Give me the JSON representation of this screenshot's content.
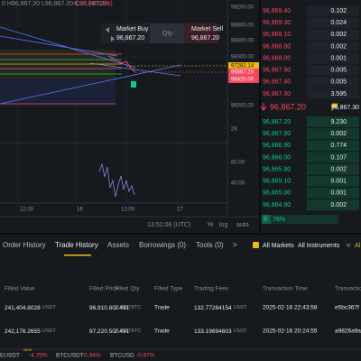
{
  "header": {
    "ohlc": "0  H96,867.20  L96,867.20  C96,867.20",
    "change": "-6.90 (-0.01%)"
  },
  "quick_trade": {
    "buy_label": "Market Buy",
    "buy_price": "96,867.20",
    "qty_label": "Qty",
    "sell_label": "Market Sell",
    "sell_price": "96,867.20"
  },
  "price_axis": [
    "99200.00",
    "98800.00",
    "98400.00",
    "98000.00",
    "96000.00"
  ],
  "price_badges": [
    {
      "label": "97282.14",
      "color": "#f0b90b"
    },
    {
      "label": "96867.20",
      "color": "#f6465d"
    },
    {
      "label": "96420.00",
      "color": "#f6465d"
    }
  ],
  "indicator_axis": [
    "2K",
    "80.00",
    "40.00"
  ],
  "time_axis": [
    "12:00",
    "16",
    "12:00",
    "17"
  ],
  "toolbar": {
    "clock": "13:52:08 (UTC)",
    "percent": "%",
    "log": "log",
    "auto": "auto"
  },
  "order_book": {
    "asks": [
      {
        "price": "96,869.40",
        "qty": "0.102"
      },
      {
        "price": "96,869.30",
        "qty": "0.024"
      },
      {
        "price": "96,869.10",
        "qty": "0.002"
      },
      {
        "price": "96,868.80",
        "qty": "0.002"
      },
      {
        "price": "96,868.00",
        "qty": "0.001"
      },
      {
        "price": "96,867.90",
        "qty": "0.005"
      },
      {
        "price": "96,867.40",
        "qty": "0.005"
      },
      {
        "price": "96,867.30",
        "qty": "3.595"
      }
    ],
    "last_price": "96,867.20",
    "mark_price": "96,867.30",
    "bids": [
      {
        "price": "96,867.20",
        "qty": "9.230"
      },
      {
        "price": "96,867.00",
        "qty": "0.002"
      },
      {
        "price": "96,866.90",
        "qty": "0.774"
      },
      {
        "price": "96,866.00",
        "qty": "0.107"
      },
      {
        "price": "96,865.90",
        "qty": "0.002"
      },
      {
        "price": "96,865.10",
        "qty": "0.001"
      },
      {
        "price": "96,865.00",
        "qty": "0.001"
      },
      {
        "price": "96,864.90",
        "qty": "0.002"
      }
    ],
    "buy_ratio_label": "B",
    "buy_ratio": "76%"
  },
  "tabs": [
    "Order History",
    "Trade History",
    "Assets",
    "Borrowings (0)",
    "Tools (0)",
    ">"
  ],
  "active_tab": 1,
  "filters": {
    "all_markets": "All Markets",
    "all_instruments": "All Instruments",
    "more": "Al"
  },
  "table": {
    "columns": [
      "Filled Value",
      "Filled Price",
      "Filled Qty",
      "Filled Type",
      "Trading Fees",
      "Transaction Time",
      "Transactio"
    ],
    "rows": [
      [
        {
          "value": "241,404.8028",
          "unit": "USDT"
        },
        {
          "value": "96,910.80",
          "unit": "USDT"
        },
        {
          "value": "2.491",
          "unit": "BTC"
        },
        "Trade",
        {
          "value": "132.77264154",
          "unit": "USDT"
        },
        "2025-02-16 22:43:58",
        "e5bc367f"
      ],
      [
        {
          "value": "242,176.2655",
          "unit": "USDT"
        },
        {
          "value": "97,220.50",
          "unit": "USDT"
        },
        {
          "value": "2.491",
          "unit": "BTC"
        },
        "Trade",
        {
          "value": "133.19694603",
          "unit": "USDT"
        },
        "2025-02-16 20:24:55",
        "a9826a9a"
      ]
    ]
  },
  "ticker": [
    {
      "symbol": "EUSDT",
      "change": "-4.75%",
      "badge": "NEW"
    },
    {
      "symbol": "BTCUSDT",
      "change": "-0.94%"
    },
    {
      "symbol": "BTCUSD",
      "change": "-0.87%"
    }
  ]
}
